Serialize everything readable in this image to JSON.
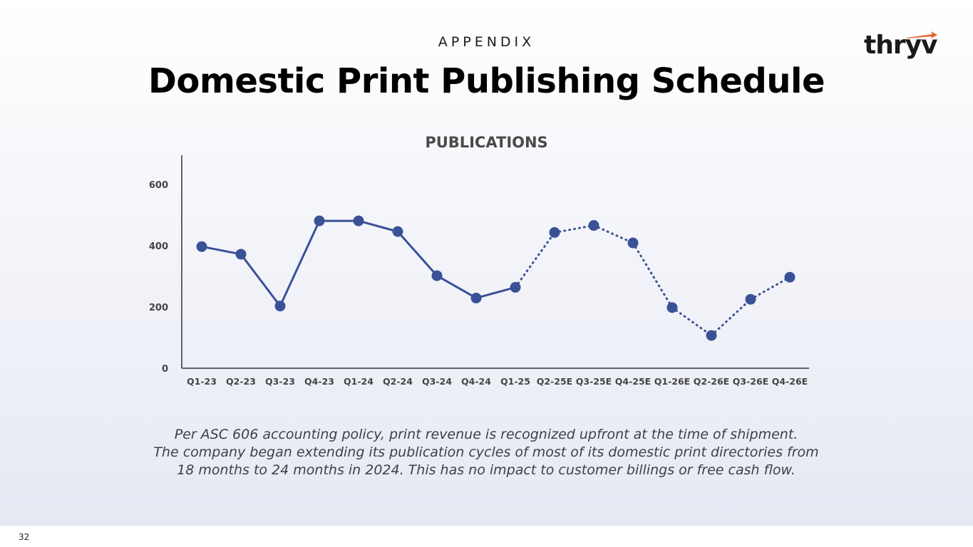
{
  "slide": {
    "eyebrow": "APPENDIX",
    "title": "Domestic Print Publishing Schedule",
    "logo_text": "thryv",
    "page_number": "32"
  },
  "footnote": {
    "lines": [
      "Per ASC 606 accounting policy, print revenue is recognized upfront at the time of shipment.",
      "The company began extending its publication cycles of most of its domestic print directories from",
      "18 months to 24 months in 2024. This has no impact to customer billings or free cash flow."
    ]
  },
  "colors": {
    "series": "#3a5197",
    "axis": "#333333",
    "tick_label": "#444444",
    "logo_accent": "#e8622c"
  },
  "chart_data": {
    "type": "line",
    "title": "PUBLICATIONS",
    "xlabel": "",
    "ylabel": "",
    "categories": [
      "Q1-23",
      "Q2-23",
      "Q3-23",
      "Q4-23",
      "Q1-24",
      "Q2-24",
      "Q3-24",
      "Q4-24",
      "Q1-25",
      "Q2-25E",
      "Q3-25E",
      "Q4-25E",
      "Q1-26E",
      "Q2-26E",
      "Q3-26E",
      "Q4-26E"
    ],
    "series": [
      {
        "values": [
          397,
          372,
          203,
          481,
          481,
          446,
          302,
          229,
          264,
          443,
          466,
          409,
          198,
          107,
          225,
          297
        ],
        "line_style_by_index": [
          "solid",
          "solid",
          "solid",
          "solid",
          "solid",
          "solid",
          "solid",
          "solid",
          "solid",
          "dotted",
          "dotted",
          "dotted",
          "dotted",
          "dotted",
          "dotted",
          "dotted"
        ]
      }
    ],
    "actual_through": "Q1-25",
    "yticks": [
      0,
      200,
      400,
      600
    ],
    "ylim": [
      0,
      695
    ],
    "grid": false,
    "legend": "none"
  }
}
